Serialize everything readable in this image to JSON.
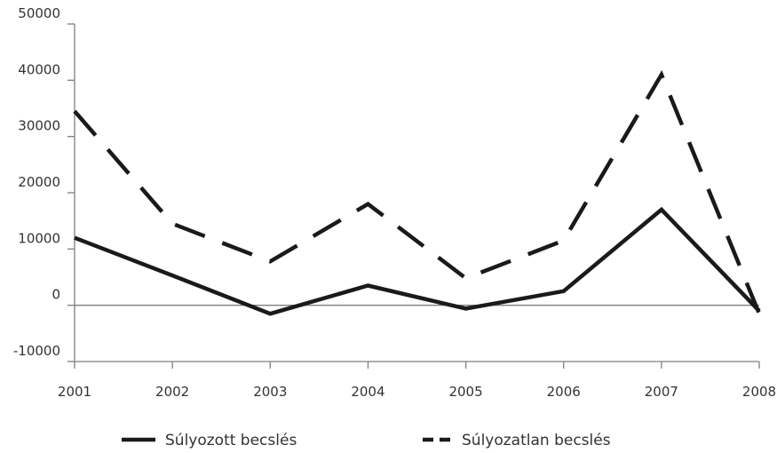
{
  "chart_data": {
    "type": "line",
    "x": [
      "2001",
      "2002",
      "2003",
      "2004",
      "2005",
      "2006",
      "2007",
      "2008"
    ],
    "series": [
      {
        "name": "Súlyozott becslés",
        "style": "solid",
        "color": "#1a1a1a",
        "values": [
          12000,
          5300,
          -1500,
          3500,
          -600,
          2500,
          17000,
          -1000
        ]
      },
      {
        "name": "Súlyozatlan becslés",
        "style": "dashed",
        "color": "#1a1a1a",
        "values": [
          34500,
          14500,
          7800,
          18000,
          4800,
          11500,
          41000,
          -1500
        ]
      }
    ],
    "yticks": [
      "50000",
      "40000",
      "30000",
      "20000",
      "10000",
      "0",
      "-10000"
    ],
    "ytick_values": [
      50000,
      40000,
      30000,
      20000,
      10000,
      0,
      -10000
    ],
    "ylim": [
      -10000,
      50000
    ],
    "title": "",
    "xlabel": "",
    "ylabel": "",
    "grid": false,
    "zero_line": true,
    "legend_position": "bottom"
  }
}
